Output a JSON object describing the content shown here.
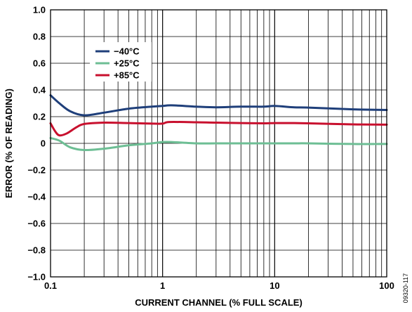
{
  "chart_data": {
    "type": "line",
    "xlabel": "CURRENT CHANNEL (% FULL SCALE)",
    "ylabel": "ERROR (% OF READING)",
    "x_scale": "log",
    "xlim": [
      0.1,
      100
    ],
    "ylim": [
      -1.0,
      1.0
    ],
    "x_ticks": [
      "0.1",
      "1",
      "10",
      "100"
    ],
    "y_ticks": [
      "1.0",
      "0.8",
      "0.6",
      "0.4",
      "0.2",
      "0",
      "−0.2",
      "−0.4",
      "−0.6",
      "−0.8",
      "−1.0"
    ],
    "grid": true,
    "legend_position": "top-left",
    "figure_id": "09320-117",
    "series": [
      {
        "name": "−40°C",
        "color": "#1f3f7a",
        "x": [
          0.1,
          0.12,
          0.15,
          0.2,
          0.3,
          0.5,
          0.8,
          1.0,
          1.2,
          2,
          3,
          5,
          8,
          10,
          15,
          20,
          50,
          100
        ],
        "y": [
          0.36,
          0.3,
          0.24,
          0.21,
          0.23,
          0.26,
          0.275,
          0.28,
          0.285,
          0.275,
          0.27,
          0.275,
          0.275,
          0.28,
          0.27,
          0.268,
          0.255,
          0.25
        ]
      },
      {
        "name": "+25°C",
        "color": "#6dbe94",
        "x": [
          0.1,
          0.12,
          0.15,
          0.2,
          0.3,
          0.5,
          0.8,
          1.0,
          1.2,
          2,
          3,
          5,
          8,
          10,
          15,
          20,
          50,
          100
        ],
        "y": [
          0.04,
          0.02,
          -0.03,
          -0.05,
          -0.04,
          -0.015,
          0.0,
          0.01,
          0.01,
          0.0,
          0.0,
          0.0,
          0.0,
          0.0,
          0.0,
          0.0,
          -0.005,
          -0.005
        ]
      },
      {
        "name": "+85°C",
        "color": "#c8102e",
        "x": [
          0.1,
          0.11,
          0.12,
          0.14,
          0.17,
          0.2,
          0.3,
          0.5,
          0.8,
          1.0,
          1.15,
          2,
          3,
          5,
          8,
          10,
          15,
          20,
          50,
          100
        ],
        "y": [
          0.15,
          0.09,
          0.06,
          0.075,
          0.12,
          0.145,
          0.155,
          0.152,
          0.148,
          0.148,
          0.16,
          0.158,
          0.155,
          0.152,
          0.15,
          0.152,
          0.152,
          0.15,
          0.142,
          0.14
        ]
      }
    ]
  }
}
